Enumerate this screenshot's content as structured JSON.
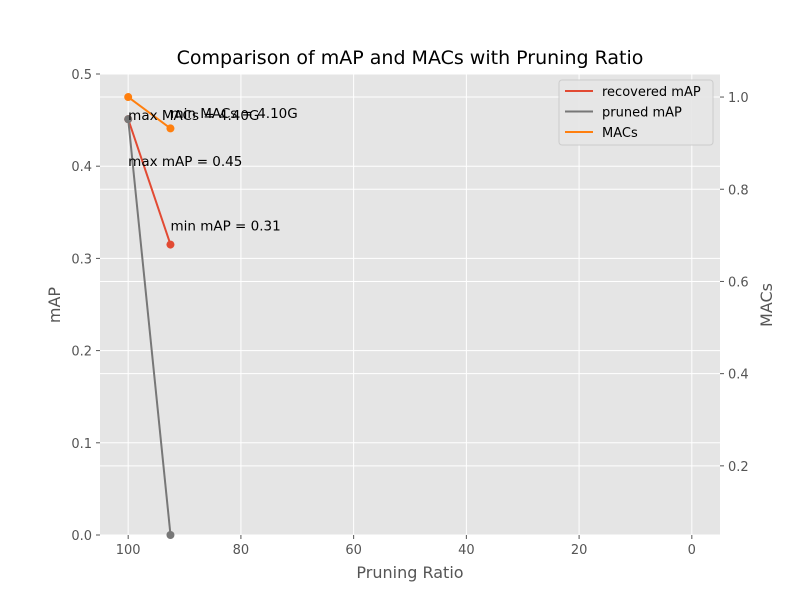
{
  "chart_data": {
    "type": "line",
    "title": "Comparison of mAP and MACs with Pruning Ratio",
    "xlabel": "Pruning Ratio",
    "ylabel": "mAP",
    "y2label": "MACs",
    "xlim": [
      105,
      -5
    ],
    "ylim": [
      0,
      0.5
    ],
    "y2lim": [
      0.05,
      1.05
    ],
    "xticks": [
      100,
      80,
      60,
      40,
      20,
      0
    ],
    "yticks": [
      0.0,
      0.1,
      0.2,
      0.3,
      0.4,
      0.5
    ],
    "y2ticks": [
      0.2,
      0.4,
      0.6,
      0.8,
      1.0
    ],
    "grid": true,
    "legend_position": "top-right",
    "series": [
      {
        "name": "recovered mAP",
        "axis": "left",
        "color": "#E24A33",
        "x": [
          100,
          92.5
        ],
        "y": [
          0.451,
          0.315
        ]
      },
      {
        "name": "pruned mAP",
        "axis": "left",
        "color": "#777777",
        "x": [
          100,
          92.5
        ],
        "y": [
          0.451,
          0.0
        ]
      },
      {
        "name": "MACs",
        "axis": "right",
        "color": "#FF7F0E",
        "x": [
          100,
          92.5
        ],
        "y": [
          1.0,
          0.932
        ]
      }
    ],
    "annotations": [
      {
        "text": "max mAP = 0.45",
        "x": 100,
        "y": 0.4,
        "axis": "left"
      },
      {
        "text": "min mAP = 0.31",
        "x": 92.5,
        "y": 0.33,
        "axis": "left"
      },
      {
        "text": "max MACs = 4.40G",
        "x": 100,
        "y": 0.95,
        "axis": "right"
      },
      {
        "text": "min MACs = 4.10G",
        "x": 92.5,
        "y": 0.955,
        "axis": "right"
      }
    ]
  }
}
